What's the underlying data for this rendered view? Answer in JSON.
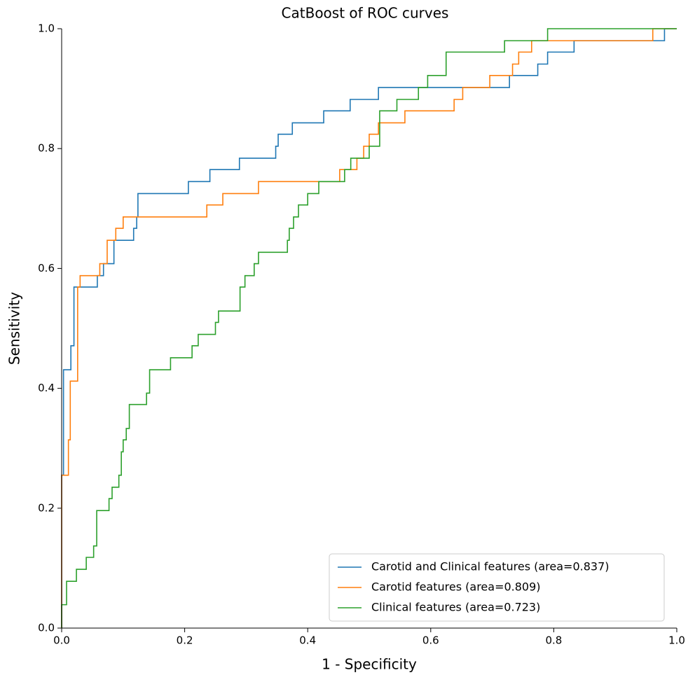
{
  "chart_data": {
    "type": "line",
    "title": "CatBoost of ROC curves",
    "x_label": "1 - Specificity",
    "y_label": "Sensitivity",
    "xlim": [
      0,
      1
    ],
    "ylim": [
      0,
      1
    ],
    "xticks": [
      {
        "value": 0,
        "label": "0.0"
      },
      0.2,
      0.4,
      0.6,
      0.8,
      {
        "value": 1,
        "label": "1.0"
      }
    ],
    "yticks": [
      {
        "value": 0,
        "label": "0.0"
      },
      0.2,
      0.4,
      0.6,
      0.8,
      {
        "value": 1,
        "label": "1.0"
      }
    ],
    "legend": "lower right",
    "series": [
      {
        "name": "Carotid and Clinical features (area=0.837)",
        "color": "#1f77b4",
        "x": [
          0,
          0,
          0.003,
          0.003,
          0.015,
          0.015,
          0.02,
          0.02,
          0.058,
          0.058,
          0.068,
          0.068,
          0.085,
          0.085,
          0.117,
          0.117,
          0.122,
          0.122,
          0.124,
          0.124,
          0.206,
          0.206,
          0.241,
          0.241,
          0.289,
          0.289,
          0.348,
          0.348,
          0.352,
          0.352,
          0.375,
          0.375,
          0.426,
          0.426,
          0.469,
          0.469,
          0.515,
          0.515,
          0.728,
          0.728,
          0.774,
          0.774,
          0.79,
          0.79,
          0.833,
          0.833,
          0.98,
          0.98,
          1
        ],
        "values": [
          0,
          0.255,
          0.255,
          0.431,
          0.431,
          0.471,
          0.471,
          0.569,
          0.569,
          0.588,
          0.588,
          0.608,
          0.608,
          0.647,
          0.647,
          0.667,
          0.667,
          0.686,
          0.686,
          0.725,
          0.725,
          0.745,
          0.745,
          0.765,
          0.765,
          0.784,
          0.784,
          0.804,
          0.804,
          0.824,
          0.824,
          0.843,
          0.843,
          0.863,
          0.863,
          0.882,
          0.882,
          0.902,
          0.902,
          0.922,
          0.922,
          0.941,
          0.941,
          0.961,
          0.961,
          0.98,
          0.98,
          1,
          1
        ]
      },
      {
        "name": "Carotid features (area=0.809)",
        "color": "#ff7f0e",
        "x": [
          0,
          0,
          0.011,
          0.011,
          0.014,
          0.014,
          0.026,
          0.026,
          0.03,
          0.03,
          0.062,
          0.062,
          0.074,
          0.074,
          0.088,
          0.088,
          0.1,
          0.1,
          0.236,
          0.236,
          0.262,
          0.262,
          0.32,
          0.32,
          0.452,
          0.452,
          0.48,
          0.48,
          0.491,
          0.491,
          0.5,
          0.5,
          0.515,
          0.515,
          0.558,
          0.558,
          0.638,
          0.638,
          0.652,
          0.652,
          0.696,
          0.696,
          0.733,
          0.733,
          0.743,
          0.743,
          0.764,
          0.764,
          0.961,
          0.961,
          1
        ],
        "values": [
          0,
          0.255,
          0.255,
          0.314,
          0.314,
          0.412,
          0.412,
          0.569,
          0.569,
          0.588,
          0.588,
          0.608,
          0.608,
          0.647,
          0.647,
          0.667,
          0.667,
          0.686,
          0.686,
          0.706,
          0.706,
          0.725,
          0.725,
          0.745,
          0.745,
          0.765,
          0.765,
          0.784,
          0.784,
          0.804,
          0.804,
          0.824,
          0.824,
          0.843,
          0.843,
          0.863,
          0.863,
          0.882,
          0.882,
          0.902,
          0.902,
          0.922,
          0.922,
          0.941,
          0.941,
          0.961,
          0.961,
          0.98,
          0.98,
          1,
          1
        ]
      },
      {
        "name": "Clinical features (area=0.723)",
        "color": "#2ca02c",
        "x": [
          0,
          0,
          0.008,
          0.008,
          0.024,
          0.024,
          0.04,
          0.04,
          0.052,
          0.052,
          0.057,
          0.057,
          0.077,
          0.077,
          0.082,
          0.082,
          0.093,
          0.093,
          0.097,
          0.097,
          0.1,
          0.1,
          0.105,
          0.105,
          0.11,
          0.11,
          0.138,
          0.138,
          0.143,
          0.143,
          0.177,
          0.177,
          0.212,
          0.212,
          0.222,
          0.222,
          0.25,
          0.25,
          0.255,
          0.255,
          0.29,
          0.29,
          0.298,
          0.298,
          0.313,
          0.313,
          0.32,
          0.32,
          0.367,
          0.367,
          0.37,
          0.37,
          0.377,
          0.377,
          0.385,
          0.385,
          0.4,
          0.4,
          0.418,
          0.418,
          0.46,
          0.46,
          0.47,
          0.47,
          0.5,
          0.5,
          0.517,
          0.517,
          0.545,
          0.545,
          0.58,
          0.58,
          0.595,
          0.595,
          0.625,
          0.625,
          0.72,
          0.72,
          0.79,
          0.79,
          1
        ],
        "values": [
          0,
          0.039,
          0.039,
          0.078,
          0.078,
          0.098,
          0.098,
          0.118,
          0.118,
          0.137,
          0.137,
          0.196,
          0.196,
          0.216,
          0.216,
          0.235,
          0.235,
          0.255,
          0.255,
          0.294,
          0.294,
          0.314,
          0.314,
          0.333,
          0.333,
          0.373,
          0.373,
          0.392,
          0.392,
          0.431,
          0.431,
          0.451,
          0.451,
          0.471,
          0.471,
          0.49,
          0.49,
          0.51,
          0.51,
          0.529,
          0.529,
          0.569,
          0.569,
          0.588,
          0.588,
          0.608,
          0.608,
          0.627,
          0.627,
          0.647,
          0.647,
          0.667,
          0.667,
          0.686,
          0.686,
          0.706,
          0.706,
          0.725,
          0.725,
          0.745,
          0.745,
          0.765,
          0.765,
          0.784,
          0.784,
          0.804,
          0.804,
          0.863,
          0.863,
          0.882,
          0.882,
          0.902,
          0.902,
          0.922,
          0.922,
          0.961,
          0.961,
          0.98,
          0.98,
          1,
          1
        ]
      }
    ]
  }
}
